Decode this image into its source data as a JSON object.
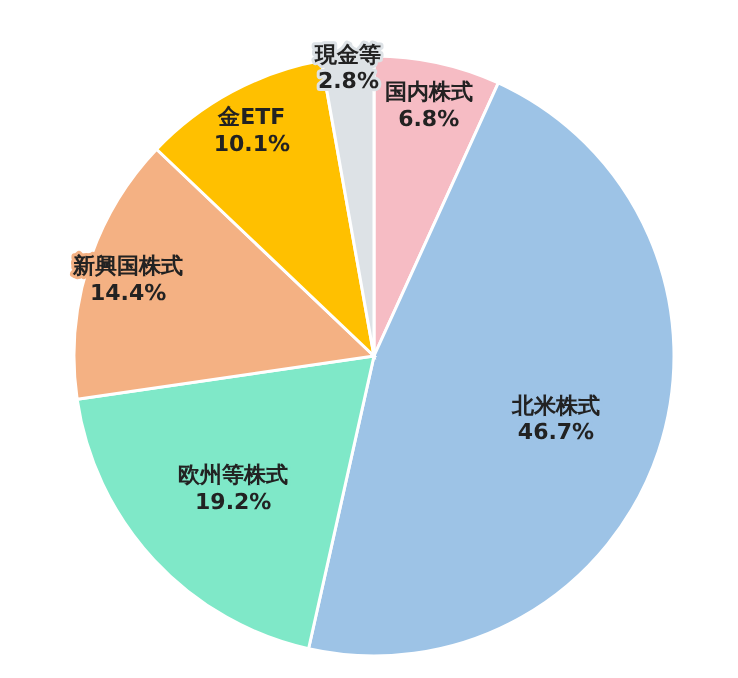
{
  "chart_data": {
    "type": "pie",
    "categories": [
      "国内株式",
      "北米株式",
      "欧州等株式",
      "新興国株式",
      "金ETF",
      "現金等"
    ],
    "values": [
      6.8,
      46.7,
      19.2,
      14.4,
      10.1,
      2.8
    ],
    "colors": [
      "#f6bcc4",
      "#9dc3e6",
      "#7fe8c8",
      "#f4b183",
      "#ffc000",
      "#dde2e6"
    ],
    "value_labels": [
      "6.8%",
      "46.7%",
      "19.2%",
      "14.4%",
      "10.1%",
      "2.8%"
    ]
  }
}
